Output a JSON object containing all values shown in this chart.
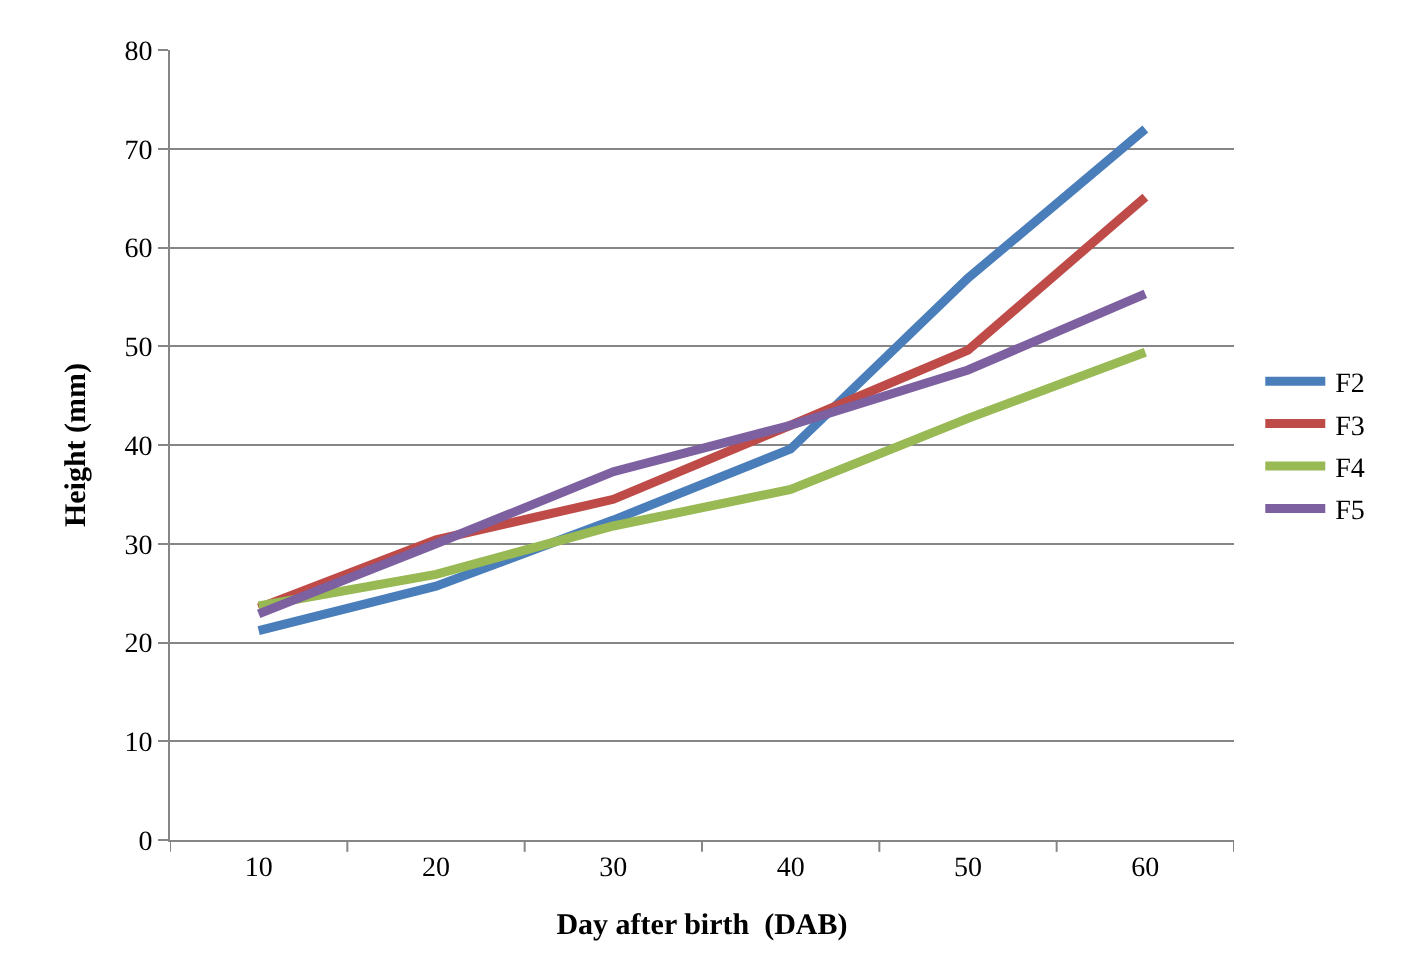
{
  "chart_data": {
    "type": "line",
    "xlabel": "Day after birth  (DAB)",
    "ylabel": "Height (mm)",
    "categories": [
      "10",
      "20",
      "30",
      "40",
      "50",
      "60"
    ],
    "series": [
      {
        "name": "F2",
        "color": "#4a7ebb",
        "values": [
          21.2,
          25.7,
          32.4,
          39.6,
          56.9,
          72
        ]
      },
      {
        "name": "F3",
        "color": "#be4b48",
        "values": [
          23.5,
          30.4,
          34.5,
          42,
          49.6,
          65.1
        ]
      },
      {
        "name": "F4",
        "color": "#98b954",
        "values": [
          23.7,
          26.9,
          31.8,
          35.5,
          42.7,
          49.4
        ]
      },
      {
        "name": "F5",
        "color": "#7d60a0",
        "values": [
          22.9,
          30,
          37.3,
          42,
          47.6,
          55.3
        ]
      }
    ],
    "ylim": [
      0,
      80
    ],
    "yticks": [
      0,
      10,
      20,
      30,
      40,
      50,
      60,
      70,
      80
    ],
    "grid": "y",
    "legend": "right",
    "marker": "none",
    "line_style": "solid"
  }
}
